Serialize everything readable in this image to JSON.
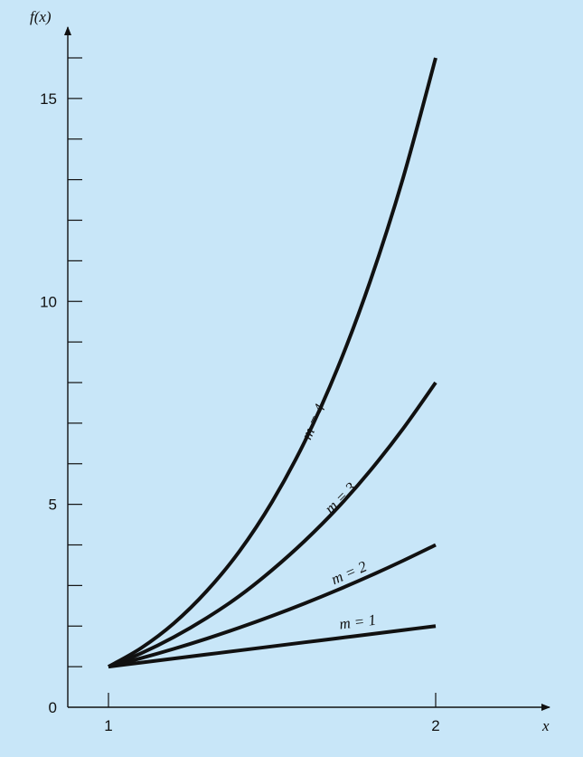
{
  "colors": {
    "background": "#c8e6f8",
    "ink": "#111111"
  },
  "chart_data": {
    "type": "line",
    "title": "",
    "xlabel": "x",
    "ylabel": "f(x)",
    "xlim": [
      1,
      2
    ],
    "ylim": [
      0,
      16
    ],
    "x_ticks": [
      1,
      2
    ],
    "x_tick_labels": [
      "1",
      "2"
    ],
    "y_ticks": [
      0,
      1,
      2,
      3,
      4,
      5,
      6,
      7,
      8,
      9,
      10,
      11,
      12,
      13,
      14,
      15,
      16
    ],
    "y_tick_labels": [
      "0",
      "5",
      "10",
      "15"
    ],
    "y_tick_label_values": [
      0,
      5,
      10,
      15
    ],
    "grid": false,
    "legend": "none",
    "x": [
      1.0,
      1.1,
      1.2,
      1.3,
      1.4,
      1.5,
      1.6,
      1.7,
      1.8,
      1.9,
      2.0
    ],
    "series": [
      {
        "name": "m = 1",
        "values": [
          1.0,
          1.1,
          1.2,
          1.3,
          1.4,
          1.5,
          1.6,
          1.7,
          1.8,
          1.9,
          2.0
        ]
      },
      {
        "name": "m = 2",
        "values": [
          1.0,
          1.21,
          1.44,
          1.69,
          1.96,
          2.25,
          2.56,
          2.89,
          3.24,
          3.61,
          4.0
        ]
      },
      {
        "name": "m = 3",
        "values": [
          1.0,
          1.33,
          1.73,
          2.2,
          2.74,
          3.38,
          4.1,
          4.91,
          5.83,
          6.86,
          8.0
        ]
      },
      {
        "name": "m = 4",
        "values": [
          1.0,
          1.46,
          2.07,
          2.86,
          3.84,
          5.06,
          6.55,
          8.35,
          10.5,
          13.03,
          16.0
        ]
      }
    ]
  }
}
